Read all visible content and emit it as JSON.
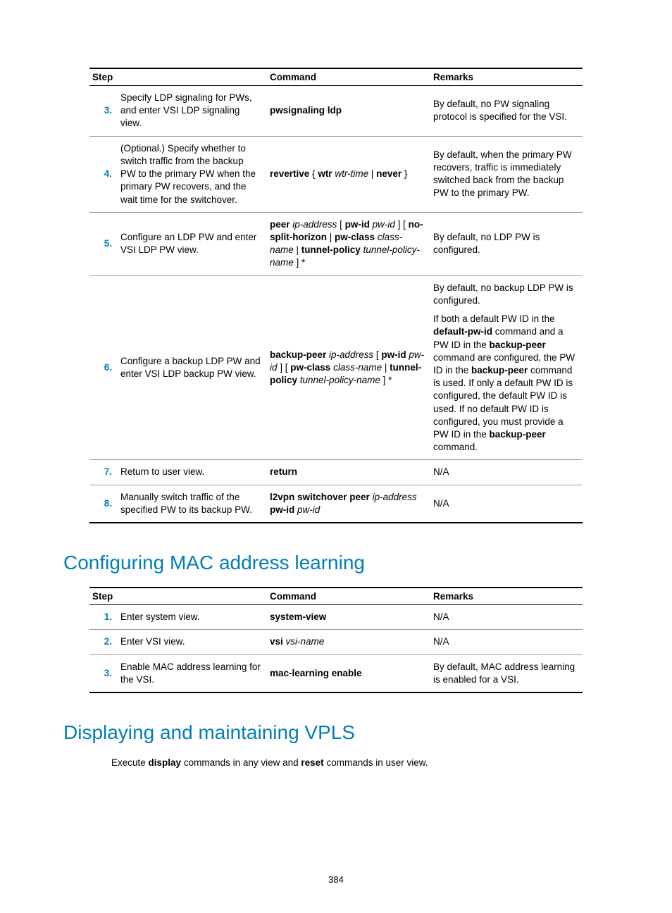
{
  "page_number": "384",
  "table1": {
    "headers": {
      "step": "Step",
      "command": "Command",
      "remarks": "Remarks"
    },
    "rows": [
      {
        "num": "3.",
        "desc": "Specify LDP signaling for PWs, and enter VSI LDP signaling view.",
        "command_html": "<span class=\"b\">pwsignaling ldp</span>",
        "remarks_html": "By default, no PW signaling protocol is specified for the VSI."
      },
      {
        "num": "4.",
        "desc": "(Optional.) Specify whether to switch traffic from the backup PW to the primary PW when the primary PW recovers, and the wait time for the switchover.",
        "command_html": "<span class=\"b\">revertive</span> { <span class=\"b\">wtr</span> <span class=\"i\">wtr-time</span> | <span class=\"b\">never</span> }",
        "remarks_html": "By default, when the primary PW recovers, traffic is immediately switched back from the backup PW to the primary PW."
      },
      {
        "num": "5.",
        "desc": "Configure an LDP PW and enter VSI LDP PW view.",
        "command_html": "<span class=\"b\">peer</span> <span class=\"i\">ip-address</span> [ <span class=\"b\">pw-id</span> <span class=\"i\">pw-id</span> ] [ <span class=\"b\">no-split-horizon</span> | <span class=\"b\">pw-class</span> <span class=\"i\">class-name</span> | <span class=\"b\">tunnel-policy</span> <span class=\"i\">tunnel-policy-name</span> ] *",
        "remarks_html": "By default, no LDP PW is configured."
      },
      {
        "num": "6.",
        "desc": "Configure a backup LDP PW and enter VSI LDP backup PW view.",
        "command_html": "<span class=\"b\">backup-peer</span> <span class=\"i\">ip-address</span> [ <span class=\"b\">pw-id</span> <span class=\"i\">pw-id</span> ] [ <span class=\"b\">pw-class</span> <span class=\"i\">class-name</span> | <span class=\"b\">tunnel-policy</span> <span class=\"i\">tunnel-policy-name</span> ] *",
        "remarks_html": "<div class=\"remarks-block\"><p>By default, no backup LDP PW is configured.</p><p>If both a default PW ID in the <span class=\"b\">default-pw-id</span> command and a PW ID in the <span class=\"b\">backup-peer</span> command are configured, the PW ID in the <span class=\"b\">backup-peer</span> command is used. If only a default PW ID is configured, the default PW ID is used. If no default PW ID is configured, you must provide a PW ID in the <span class=\"b\">backup-peer</span> command.</p></div>"
      },
      {
        "num": "7.",
        "desc": "Return to user view.",
        "command_html": "<span class=\"b\">return</span>",
        "remarks_html": "N/A"
      },
      {
        "num": "8.",
        "desc": "Manually switch traffic of the specified PW to its backup PW.",
        "command_html": "<span class=\"b\">l2vpn switchover peer</span> <span class=\"i\">ip-address</span> <span class=\"b\">pw-id</span> <span class=\"i\">pw-id</span>",
        "remarks_html": "N/A"
      }
    ]
  },
  "heading1": "Configuring MAC address learning",
  "table2": {
    "headers": {
      "step": "Step",
      "command": "Command",
      "remarks": "Remarks"
    },
    "rows": [
      {
        "num": "1.",
        "desc": "Enter system view.",
        "command_html": "<span class=\"b\">system-view</span>",
        "remarks_html": "N/A"
      },
      {
        "num": "2.",
        "desc": "Enter VSI view.",
        "command_html": "<span class=\"b\">vsi</span> <span class=\"i\">vsi-name</span>",
        "remarks_html": "N/A"
      },
      {
        "num": "3.",
        "desc": "Enable MAC address learning for the VSI.",
        "command_html": "<span class=\"b\">mac-learning enable</span>",
        "remarks_html": "By default, MAC address learning is enabled for a VSI."
      }
    ]
  },
  "heading2": "Displaying and maintaining VPLS",
  "body_text_html": "Execute <span class=\"b\">display</span> commands in any view and <span class=\"b\">reset</span> commands in user view."
}
